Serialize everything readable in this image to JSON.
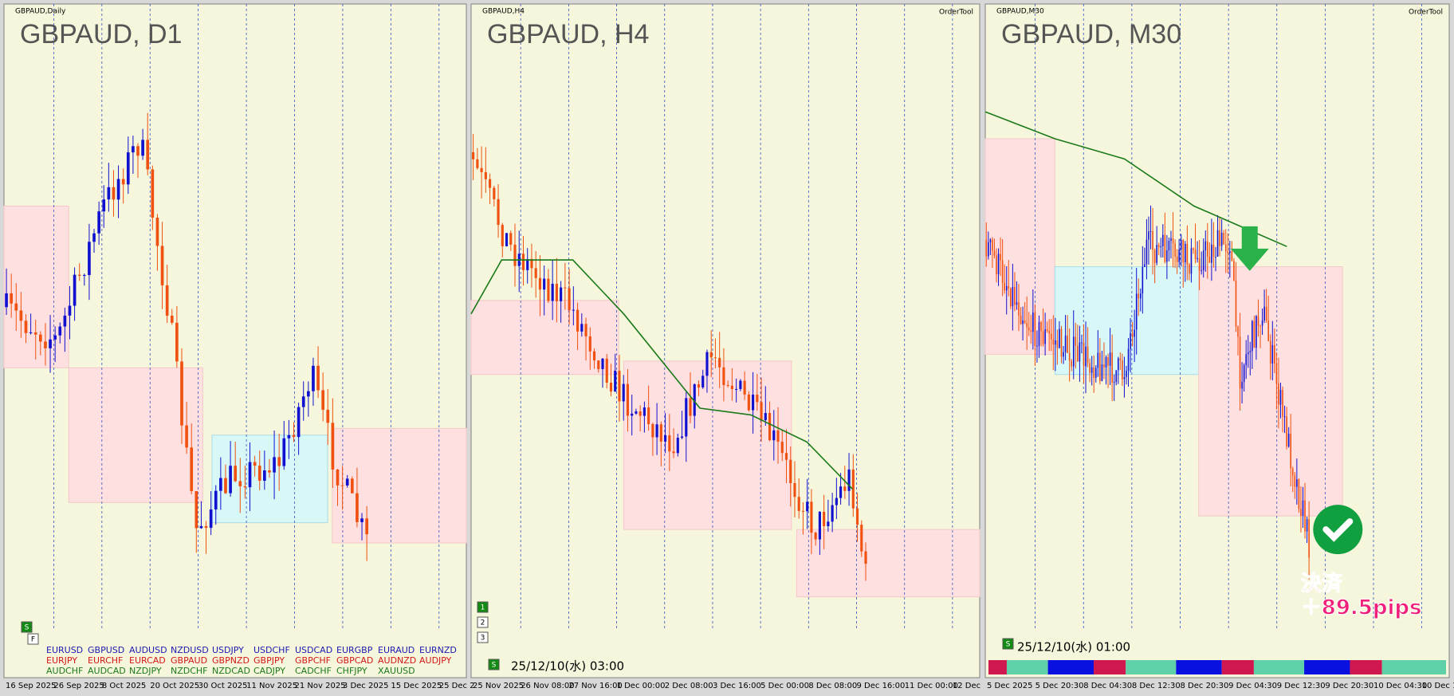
{
  "panels": [
    {
      "caption": "GBPAUD,Daily",
      "title": "GBPAUD, D1",
      "x_labels": [
        "16 Sep 2025",
        "26 Sep 2025",
        "8 Oct 2025",
        "20 Oct 2025",
        "30 Oct 2025",
        "11 Nov 2025",
        "21 Nov 2025",
        "3 Dec 2025",
        "15 Dec 2025",
        "25 Dec 2"
      ],
      "buttons": [
        "S",
        "F"
      ],
      "symbols": [
        [
          "EURUSD",
          "GBPUSD",
          "AUDUSD",
          "NZDUSD",
          "USDJPY",
          "USDCHF",
          "USDCAD",
          "EURGBP",
          "EURAUD",
          "EURNZD"
        ],
        [
          "EURJPY",
          "EURCHF",
          "EURCAD",
          "GBPAUD",
          "GBPNZD",
          "GBPJPY",
          "GBPCHF",
          "GBPCAD",
          "AUDNZD",
          "AUDJPY"
        ],
        [
          "AUDCHF",
          "AUDCAD",
          "NZDJPY",
          "NZDCHF",
          "NZDCAD",
          "CADJPY",
          "CADCHF",
          "CHFJPY",
          "XAUUSD"
        ]
      ]
    },
    {
      "caption": "GBPAUD,H4",
      "title": "GBPAUD, H4",
      "order_tool": "OrderTool",
      "x_labels": [
        "25 Nov 2025",
        "26 Nov 08:00",
        "27 Nov 16:00",
        "1 Dec 00:00",
        "2 Dec 08:00",
        "3 Dec 16:00",
        "5 Dec 00:00",
        "8 Dec 08:00",
        "9 Dec 16:00",
        "11 Dec 00:00",
        "12 Dec"
      ],
      "buttons": [
        "1",
        "2",
        "3",
        "S"
      ],
      "timestamp": "25/12/10(水) 03:00"
    },
    {
      "caption": "GBPAUD,M30",
      "title": "GBPAUD, M30",
      "order_tool": "OrderTool",
      "x_labels": [
        "5 Dec 2025",
        "5 Dec 20:30",
        "8 Dec 04:30",
        "8 Dec 12:30",
        "8 Dec 20:30",
        "9 Dec 04:30",
        "9 Dec 12:30",
        "9 Dec 20:30",
        "10 Dec 04:30",
        "10 Dec 1"
      ],
      "buttons": [
        "S"
      ],
      "timestamp": "25/12/10(水) 01:00",
      "annotation": [
        "決済",
        "＋89.5pips"
      ]
    }
  ]
}
